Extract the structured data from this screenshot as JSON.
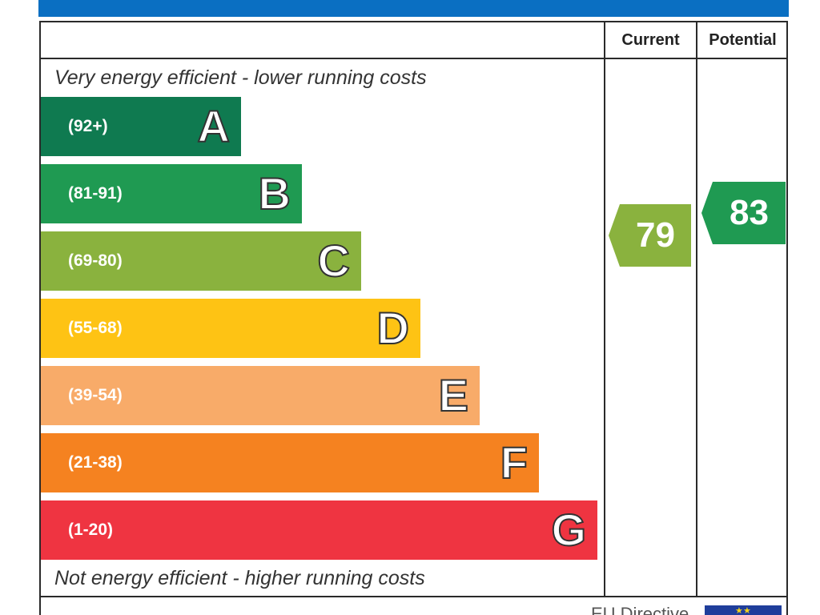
{
  "header": {
    "current_label": "Current",
    "potential_label": "Potential"
  },
  "captions": {
    "top": "Very energy efficient - lower running costs",
    "bottom": "Not energy efficient - higher running costs"
  },
  "bands": [
    {
      "letter": "A",
      "range": "(92+)",
      "color": "#0f7a50"
    },
    {
      "letter": "B",
      "range": "(81-91)",
      "color": "#1f9a52"
    },
    {
      "letter": "C",
      "range": "(69-80)",
      "color": "#8ab23e"
    },
    {
      "letter": "D",
      "range": "(55-68)",
      "color": "#fec314"
    },
    {
      "letter": "E",
      "range": "(39-54)",
      "color": "#f8ab69"
    },
    {
      "letter": "F",
      "range": "(21-38)",
      "color": "#f58220"
    },
    {
      "letter": "G",
      "range": "(1-20)",
      "color": "#ef3441"
    }
  ],
  "ratings": {
    "current": {
      "value": "79",
      "band": "C",
      "color": "#8ab23e"
    },
    "potential": {
      "value": "83",
      "band": "B",
      "color": "#1f9a52"
    }
  },
  "footer": {
    "directive_label": "EU Directive"
  },
  "colors": {
    "banner": "#0a6fc2",
    "flag": "#1f3e9b",
    "flag_star": "#f2d21b"
  }
}
